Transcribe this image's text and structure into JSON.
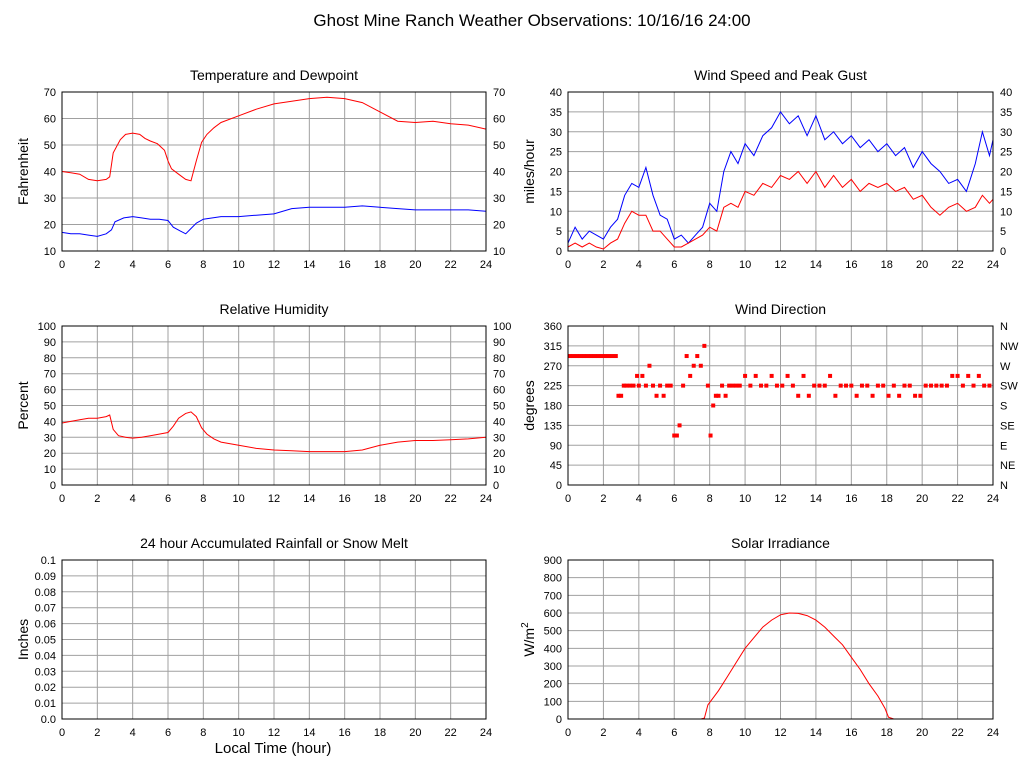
{
  "page": {
    "title": "Ghost Mine Ranch Weather Observations: 10/16/16 24:00",
    "x_axis_label": "Local Time (hour)"
  },
  "chart_data": [
    {
      "id": "temp",
      "type": "line",
      "title": "Temperature and Dewpoint",
      "ylabel": "Fahrenheit",
      "xlim": [
        0,
        24
      ],
      "ylim": [
        10,
        70
      ],
      "x_ticks": [
        0,
        2,
        4,
        6,
        8,
        10,
        12,
        14,
        16,
        18,
        20,
        22,
        24
      ],
      "y_ticks": [
        10,
        20,
        30,
        40,
        50,
        60,
        70
      ],
      "right_axis_ticks": [
        "10",
        "20",
        "30",
        "40",
        "50",
        "60",
        "70"
      ],
      "grid": true,
      "series": [
        {
          "color": "#ff0000",
          "x": [
            0,
            0.5,
            1,
            1.5,
            2,
            2.5,
            2.7,
            2.9,
            3.3,
            3.6,
            4,
            4.4,
            4.7,
            5,
            5.4,
            5.8,
            6,
            6.2,
            6.6,
            7,
            7.3,
            7.6,
            7.9,
            8.2,
            8.6,
            9,
            10,
            11,
            12,
            13,
            14,
            15,
            16,
            17,
            18,
            19,
            20,
            21,
            22,
            23,
            24
          ],
          "y": [
            40,
            39.5,
            39,
            37,
            36.5,
            37,
            38,
            47,
            52,
            54,
            54.5,
            54,
            52.5,
            51.5,
            50.5,
            48,
            44,
            41,
            39,
            37,
            36.5,
            44,
            51,
            54,
            56.5,
            58.5,
            61,
            63.5,
            65.5,
            66.5,
            67.5,
            68,
            67.5,
            66,
            62.5,
            59,
            58.5,
            59,
            58,
            57.5,
            56
          ]
        },
        {
          "color": "#0000ff",
          "x": [
            0,
            0.5,
            1,
            1.5,
            2,
            2.5,
            2.8,
            3,
            3.5,
            4,
            4.5,
            5,
            5.5,
            6,
            6.3,
            6.7,
            7,
            7.3,
            7.6,
            8,
            9,
            10,
            11,
            12,
            13,
            14,
            15,
            16,
            17,
            18,
            19,
            20,
            21,
            22,
            23,
            24
          ],
          "y": [
            17,
            16.5,
            16.5,
            16,
            15.5,
            16.5,
            18,
            21,
            22.5,
            23,
            22.5,
            22,
            22,
            21.5,
            19,
            17.5,
            16.5,
            18.5,
            20.5,
            22,
            23,
            23,
            23.5,
            24,
            26,
            26.5,
            26.5,
            26.5,
            27,
            26.5,
            26,
            25.5,
            25.5,
            25.5,
            25.5,
            25
          ]
        }
      ]
    },
    {
      "id": "wind",
      "type": "line",
      "title": "Wind Speed and Peak Gust",
      "ylabel": "miles/hour",
      "xlim": [
        0,
        24
      ],
      "ylim": [
        0,
        40
      ],
      "x_ticks": [
        0,
        2,
        4,
        6,
        8,
        10,
        12,
        14,
        16,
        18,
        20,
        22,
        24
      ],
      "y_ticks": [
        0,
        5,
        10,
        15,
        20,
        25,
        30,
        35,
        40
      ],
      "right_axis_ticks": [
        "0",
        "5",
        "10",
        "15",
        "20",
        "25",
        "30",
        "35",
        "40"
      ],
      "grid": true,
      "series": [
        {
          "color": "#0000ff",
          "x": [
            0,
            0.4,
            0.8,
            1.2,
            1.6,
            2,
            2.4,
            2.8,
            3.2,
            3.6,
            4,
            4.4,
            4.8,
            5.2,
            5.6,
            6,
            6.4,
            6.8,
            7.2,
            7.6,
            8,
            8.4,
            8.8,
            9.2,
            9.6,
            10,
            10.5,
            11,
            11.5,
            12,
            12.5,
            13,
            13.5,
            14,
            14.5,
            15,
            15.5,
            16,
            16.5,
            17,
            17.5,
            18,
            18.5,
            19,
            19.5,
            20,
            20.5,
            21,
            21.5,
            22,
            22.5,
            23,
            23.4,
            23.8,
            24
          ],
          "y": [
            2,
            6,
            3,
            5,
            4,
            3,
            6,
            8,
            14,
            17,
            16,
            21,
            14,
            9,
            8,
            3,
            4,
            2,
            4,
            6,
            12,
            10,
            20,
            25,
            22,
            27,
            24,
            29,
            31,
            35,
            32,
            34,
            29,
            34,
            28,
            30,
            27,
            29,
            26,
            28,
            25,
            27,
            24,
            26,
            21,
            25,
            22,
            20,
            17,
            18,
            15,
            22,
            30,
            24,
            28
          ]
        },
        {
          "color": "#ff0000",
          "x": [
            0,
            0.4,
            0.8,
            1.2,
            1.6,
            2,
            2.4,
            2.8,
            3.2,
            3.6,
            4,
            4.4,
            4.8,
            5.2,
            5.6,
            6,
            6.4,
            6.8,
            7.2,
            7.6,
            8,
            8.4,
            8.8,
            9.2,
            9.6,
            10,
            10.5,
            11,
            11.5,
            12,
            12.5,
            13,
            13.5,
            14,
            14.5,
            15,
            15.5,
            16,
            16.5,
            17,
            17.5,
            18,
            18.5,
            19,
            19.5,
            20,
            20.5,
            21,
            21.5,
            22,
            22.5,
            23,
            23.4,
            23.8,
            24
          ],
          "y": [
            1,
            2,
            1,
            2,
            1,
            0.5,
            2,
            3,
            7,
            10,
            9,
            9,
            5,
            5,
            3,
            1,
            1,
            2,
            3,
            4,
            6,
            5,
            11,
            12,
            11,
            15,
            14,
            17,
            16,
            19,
            18,
            20,
            17,
            20,
            16,
            19,
            16,
            18,
            15,
            17,
            16,
            17,
            15,
            16,
            13,
            14,
            11,
            9,
            11,
            12,
            10,
            11,
            14,
            12,
            13
          ]
        }
      ]
    },
    {
      "id": "rh",
      "type": "line",
      "title": "Relative Humidity",
      "ylabel": "Percent",
      "xlim": [
        0,
        24
      ],
      "ylim": [
        0,
        100
      ],
      "x_ticks": [
        0,
        2,
        4,
        6,
        8,
        10,
        12,
        14,
        16,
        18,
        20,
        22,
        24
      ],
      "y_ticks": [
        0,
        10,
        20,
        30,
        40,
        50,
        60,
        70,
        80,
        90,
        100
      ],
      "right_axis_ticks": [
        "0",
        "10",
        "20",
        "30",
        "40",
        "50",
        "60",
        "70",
        "80",
        "90",
        "100"
      ],
      "grid": true,
      "series": [
        {
          "color": "#ff0000",
          "x": [
            0,
            0.5,
            1,
            1.5,
            2,
            2.5,
            2.7,
            2.9,
            3.2,
            3.6,
            4,
            4.5,
            5,
            5.5,
            6,
            6.3,
            6.6,
            7,
            7.3,
            7.6,
            7.9,
            8.2,
            8.6,
            9,
            10,
            11,
            12,
            13,
            14,
            15,
            16,
            17,
            18,
            19,
            20,
            21,
            22,
            23,
            24
          ],
          "y": [
            39,
            40,
            41,
            42,
            42,
            43,
            44,
            35,
            31,
            30,
            29.5,
            30,
            31,
            32,
            33,
            37,
            42,
            45,
            46,
            43,
            36,
            32,
            29,
            27,
            25,
            23,
            22,
            21.5,
            21,
            21,
            21,
            22,
            25,
            27,
            28,
            28,
            28.5,
            29,
            30
          ]
        }
      ]
    },
    {
      "id": "winddir",
      "type": "scatter",
      "title": "Wind Direction",
      "ylabel": "degrees",
      "xlim": [
        0,
        24
      ],
      "ylim": [
        0,
        360
      ],
      "x_ticks": [
        0,
        2,
        4,
        6,
        8,
        10,
        12,
        14,
        16,
        18,
        20,
        22,
        24
      ],
      "y_ticks": [
        0,
        45,
        90,
        135,
        180,
        225,
        270,
        315,
        360
      ],
      "right_axis_ticks": [
        "N",
        "NE",
        "E",
        "SE",
        "S",
        "SW",
        "W",
        "NW",
        "N"
      ],
      "grid": true,
      "series": [
        {
          "color": "#ff0000",
          "x": [
            0.1,
            0.3,
            0.5,
            0.7,
            0.9,
            1.1,
            1.3,
            1.5,
            1.7,
            1.9,
            2.1,
            2.3,
            2.5,
            2.7,
            2.85,
            3.0,
            3.15,
            3.3,
            3.5,
            3.7,
            3.9,
            4.0,
            4.2,
            4.4,
            4.6,
            4.8,
            5.0,
            5.2,
            5.4,
            5.6,
            5.8,
            6.0,
            6.15,
            6.3,
            6.5,
            6.7,
            6.9,
            7.1,
            7.3,
            7.5,
            7.7,
            7.9,
            8.05,
            8.2,
            8.35,
            8.5,
            8.7,
            8.9,
            9.1,
            9.3,
            9.5,
            9.7,
            10,
            10.3,
            10.6,
            10.9,
            11.2,
            11.5,
            11.8,
            12.1,
            12.4,
            12.7,
            13.0,
            13.3,
            13.6,
            13.9,
            14.2,
            14.5,
            14.8,
            15.1,
            15.4,
            15.7,
            16.0,
            16.3,
            16.6,
            16.9,
            17.2,
            17.5,
            17.8,
            18.1,
            18.4,
            18.7,
            19.0,
            19.3,
            19.6,
            19.9,
            20.2,
            20.5,
            20.8,
            21.1,
            21.4,
            21.7,
            22.0,
            22.3,
            22.6,
            22.9,
            23.2,
            23.5,
            23.8
          ],
          "y": [
            292,
            292,
            292,
            292,
            292,
            292,
            292,
            292,
            292,
            292,
            292,
            292,
            292,
            292,
            202,
            202,
            225,
            225,
            225,
            225,
            247,
            225,
            247,
            225,
            270,
            225,
            202,
            225,
            202,
            225,
            225,
            112,
            112,
            135,
            225,
            292,
            247,
            270,
            292,
            270,
            315,
            225,
            112,
            180,
            202,
            202,
            225,
            202,
            225,
            225,
            225,
            225,
            247,
            225,
            247,
            225,
            225,
            247,
            225,
            225,
            247,
            225,
            202,
            247,
            202,
            225,
            225,
            225,
            247,
            202,
            225,
            225,
            225,
            202,
            225,
            225,
            202,
            225,
            225,
            202,
            225,
            202,
            225,
            225,
            202,
            202,
            225,
            225,
            225,
            225,
            225,
            247,
            247,
            225,
            247,
            225,
            247,
            225,
            225
          ]
        }
      ]
    },
    {
      "id": "rain",
      "type": "line",
      "title": "24 hour Accumulated Rainfall or Snow Melt",
      "ylabel": "Inches",
      "xlim": [
        0,
        24
      ],
      "ylim": [
        0,
        0.1
      ],
      "x_ticks": [
        0,
        2,
        4,
        6,
        8,
        10,
        12,
        14,
        16,
        18,
        20,
        22,
        24
      ],
      "y_ticks": [
        "0.0",
        "0.01",
        "0.02",
        "0.03",
        "0.04",
        "0.05",
        "0.06",
        "0.07",
        "0.08",
        "0.09",
        "0.1"
      ],
      "grid": true,
      "series": [
        {
          "color": "#ff0000",
          "x": [
            0,
            24
          ],
          "y": [
            0,
            0
          ]
        }
      ]
    },
    {
      "id": "solar",
      "type": "line",
      "title": "Solar Irradiance",
      "ylabel": "W/m",
      "ylabel_superscript": "2",
      "xlim": [
        0,
        24
      ],
      "ylim": [
        0,
        900
      ],
      "x_ticks": [
        0,
        2,
        4,
        6,
        8,
        10,
        12,
        14,
        16,
        18,
        20,
        22,
        24
      ],
      "y_ticks": [
        0,
        100,
        200,
        300,
        400,
        500,
        600,
        700,
        800,
        900
      ],
      "grid": true,
      "series": [
        {
          "color": "#ff0000",
          "x": [
            0,
            7.5,
            7.7,
            7.9,
            8.2,
            8.5,
            9,
            9.5,
            10,
            10.5,
            11,
            11.5,
            12,
            12.5,
            13,
            13.5,
            14,
            14.5,
            15,
            15.5,
            16,
            16.5,
            17,
            17.5,
            17.9,
            18.1,
            18.4,
            24
          ],
          "y": [
            0,
            0,
            5,
            80,
            120,
            160,
            240,
            320,
            400,
            460,
            520,
            560,
            590,
            600,
            598,
            585,
            560,
            520,
            470,
            420,
            350,
            280,
            200,
            130,
            60,
            10,
            0,
            0
          ]
        }
      ]
    }
  ]
}
